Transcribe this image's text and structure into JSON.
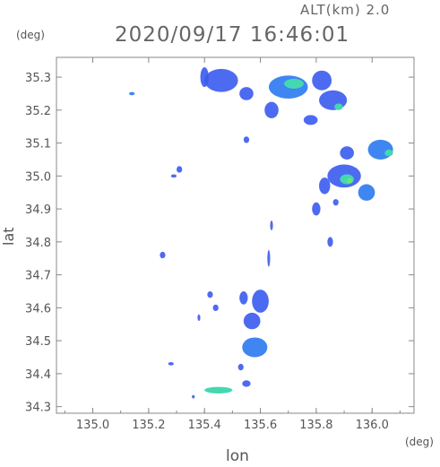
{
  "header": {
    "altitude_text": "ALT(km)  2.0",
    "timestamp_text": "2020/09/17 16:46:01"
  },
  "chart_data": {
    "type": "heatmap",
    "title": "2020/09/17 16:46:01",
    "subtitle": "ALT(km)  2.0",
    "xlabel": "lon",
    "ylabel": "lat",
    "x_unit": "(deg)",
    "y_unit": "(deg)",
    "xlim": [
      134.87,
      136.15
    ],
    "ylim": [
      34.28,
      35.36
    ],
    "x_ticks": [
      135.0,
      135.2,
      135.4,
      135.6,
      135.8,
      136.0
    ],
    "x_tick_labels": [
      "135.0",
      "135.2",
      "135.4",
      "135.6",
      "135.8",
      "136.0"
    ],
    "y_ticks": [
      34.3,
      34.4,
      34.5,
      34.6,
      34.7,
      34.8,
      34.9,
      35.0,
      35.1,
      35.2,
      35.3
    ],
    "y_tick_labels": [
      "34.3",
      "34.4",
      "34.5",
      "34.6",
      "34.7",
      "34.8",
      "34.9",
      "35.0",
      "35.1",
      "35.2",
      "35.3"
    ],
    "grid": false,
    "colors": {
      "low": "#3a5bf0",
      "mid": "#3f86f2",
      "high": "#44d8b0",
      "peak": "#6ee86a"
    },
    "echoes": [
      {
        "lon": 135.4,
        "lat": 35.3,
        "w": 0.03,
        "h": 0.06,
        "level": "low"
      },
      {
        "lon": 135.46,
        "lat": 35.29,
        "w": 0.12,
        "h": 0.07,
        "level": "low"
      },
      {
        "lon": 135.55,
        "lat": 35.25,
        "w": 0.05,
        "h": 0.04,
        "level": "low"
      },
      {
        "lon": 135.7,
        "lat": 35.27,
        "w": 0.14,
        "h": 0.07,
        "level": "mid"
      },
      {
        "lon": 135.72,
        "lat": 35.28,
        "w": 0.07,
        "h": 0.03,
        "level": "high"
      },
      {
        "lon": 135.82,
        "lat": 35.29,
        "w": 0.07,
        "h": 0.06,
        "level": "low"
      },
      {
        "lon": 135.86,
        "lat": 35.23,
        "w": 0.1,
        "h": 0.06,
        "level": "low"
      },
      {
        "lon": 135.88,
        "lat": 35.21,
        "w": 0.03,
        "h": 0.02,
        "level": "high"
      },
      {
        "lon": 135.64,
        "lat": 35.2,
        "w": 0.05,
        "h": 0.05,
        "level": "low"
      },
      {
        "lon": 135.78,
        "lat": 35.17,
        "w": 0.05,
        "h": 0.03,
        "level": "low"
      },
      {
        "lon": 136.03,
        "lat": 35.08,
        "w": 0.09,
        "h": 0.06,
        "level": "mid"
      },
      {
        "lon": 136.06,
        "lat": 35.07,
        "w": 0.03,
        "h": 0.02,
        "level": "high"
      },
      {
        "lon": 135.91,
        "lat": 35.07,
        "w": 0.05,
        "h": 0.04,
        "level": "low"
      },
      {
        "lon": 135.9,
        "lat": 35.0,
        "w": 0.12,
        "h": 0.07,
        "level": "low"
      },
      {
        "lon": 135.91,
        "lat": 34.99,
        "w": 0.05,
        "h": 0.03,
        "level": "high"
      },
      {
        "lon": 135.92,
        "lat": 34.985,
        "w": 0.02,
        "h": 0.015,
        "level": "peak"
      },
      {
        "lon": 135.83,
        "lat": 34.97,
        "w": 0.04,
        "h": 0.05,
        "level": "low"
      },
      {
        "lon": 135.98,
        "lat": 34.95,
        "w": 0.06,
        "h": 0.05,
        "level": "mid"
      },
      {
        "lon": 135.8,
        "lat": 34.9,
        "w": 0.03,
        "h": 0.04,
        "level": "low"
      },
      {
        "lon": 135.87,
        "lat": 34.92,
        "w": 0.02,
        "h": 0.02,
        "level": "low"
      },
      {
        "lon": 135.85,
        "lat": 34.8,
        "w": 0.02,
        "h": 0.03,
        "level": "low"
      },
      {
        "lon": 135.55,
        "lat": 35.11,
        "w": 0.02,
        "h": 0.02,
        "level": "low"
      },
      {
        "lon": 135.31,
        "lat": 35.02,
        "w": 0.02,
        "h": 0.02,
        "level": "low"
      },
      {
        "lon": 135.29,
        "lat": 35.0,
        "w": 0.02,
        "h": 0.01,
        "level": "low"
      },
      {
        "lon": 135.14,
        "lat": 35.25,
        "w": 0.02,
        "h": 0.01,
        "level": "mid"
      },
      {
        "lon": 135.25,
        "lat": 34.76,
        "w": 0.02,
        "h": 0.02,
        "level": "low"
      },
      {
        "lon": 135.64,
        "lat": 34.85,
        "w": 0.01,
        "h": 0.03,
        "level": "low"
      },
      {
        "lon": 135.63,
        "lat": 34.75,
        "w": 0.01,
        "h": 0.05,
        "level": "low"
      },
      {
        "lon": 135.6,
        "lat": 34.62,
        "w": 0.06,
        "h": 0.07,
        "level": "low"
      },
      {
        "lon": 135.57,
        "lat": 34.56,
        "w": 0.06,
        "h": 0.05,
        "level": "low"
      },
      {
        "lon": 135.58,
        "lat": 34.48,
        "w": 0.09,
        "h": 0.06,
        "level": "mid"
      },
      {
        "lon": 135.54,
        "lat": 34.63,
        "w": 0.03,
        "h": 0.04,
        "level": "low"
      },
      {
        "lon": 135.53,
        "lat": 34.42,
        "w": 0.02,
        "h": 0.02,
        "level": "low"
      },
      {
        "lon": 135.42,
        "lat": 34.64,
        "w": 0.02,
        "h": 0.02,
        "level": "low"
      },
      {
        "lon": 135.44,
        "lat": 34.6,
        "w": 0.02,
        "h": 0.02,
        "level": "low"
      },
      {
        "lon": 135.38,
        "lat": 34.57,
        "w": 0.01,
        "h": 0.02,
        "level": "low"
      },
      {
        "lon": 135.28,
        "lat": 34.43,
        "w": 0.02,
        "h": 0.01,
        "level": "low"
      },
      {
        "lon": 135.45,
        "lat": 34.35,
        "w": 0.1,
        "h": 0.02,
        "level": "high"
      },
      {
        "lon": 135.55,
        "lat": 34.37,
        "w": 0.03,
        "h": 0.02,
        "level": "low"
      },
      {
        "lon": 135.36,
        "lat": 34.33,
        "w": 0.01,
        "h": 0.01,
        "level": "low"
      }
    ]
  }
}
